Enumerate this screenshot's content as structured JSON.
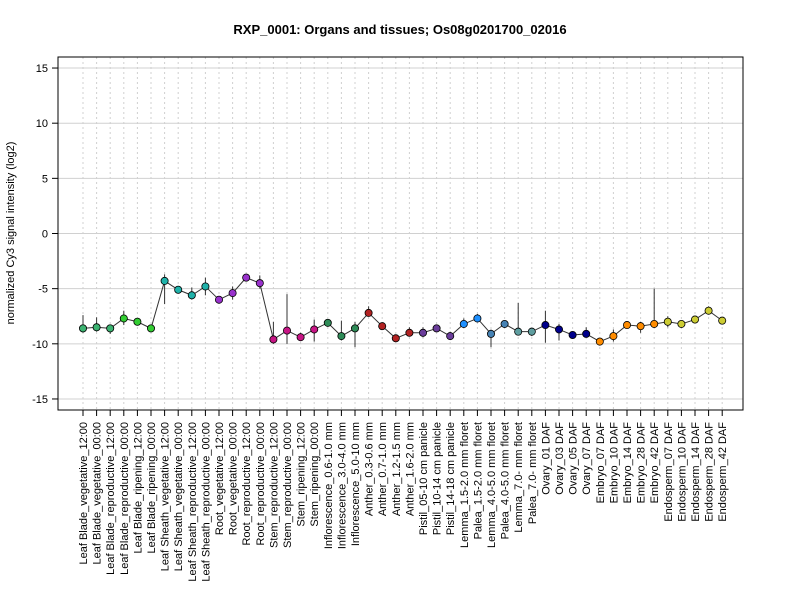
{
  "chart_data": {
    "type": "line",
    "title": "RXP_0001: Organs and tissues; Os08g0201700_02016",
    "xlabel": "",
    "ylabel": "normalized Cy3 signal intensity (log2)",
    "ylim": [
      -16,
      16
    ],
    "yticks": [
      -15,
      -10,
      -5,
      0,
      5,
      10,
      15
    ],
    "grid": true,
    "categories": [
      "Leaf Blade_vegetative_12:00",
      "Leaf Blade_vegetative_00:00",
      "Leaf Blade_reproductive_12:00",
      "Leaf Blade_reproductive_00:00",
      "Leaf Blade_ripening_12:00",
      "Leaf Blade_ripening_00:00",
      "Leaf Sheath_vegetative_12:00",
      "Leaf Sheath_vegetative_00:00",
      "Leaf Sheath_reproductive_12:00",
      "Leaf Sheath_reproductive_00:00",
      "Root_vegetative_12:00",
      "Root_vegetative_00:00",
      "Root_reproductive_12:00",
      "Root_reproductive_00:00",
      "Stem_reproductive_12:00",
      "Stem_reproductive_00:00",
      "Stem_ripening_12:00",
      "Stem_ripening_00:00",
      "Inflorescence_0.6-1.0 mm",
      "Inflorescence_3.0-4.0 mm",
      "Inflorescence_5.0-10 mm",
      "Anther_0.3-0.6 mm",
      "Anther_0.7-1.0 mm",
      "Anther_1.2-1.5 mm",
      "Anther_1.6-2.0 mm",
      "Pistil_05-10 cm panicle",
      "Pistil_10-14 cm panicle",
      "Pistil_14-18 cm panicle",
      "Lemma_1.5-2.0 mm floret",
      "Palea_1.5-2.0 mm floret",
      "Lemma_4.0-5.0 mm floret",
      "Palea_4.0-5.0 mm floret",
      "Lemma_7.0- mm floret",
      "Palea_7.0- mm floret",
      "Ovary_01 DAF",
      "Ovary_03 DAF",
      "Ovary_05 DAF",
      "Ovary_07 DAF",
      "Embryo_07 DAF",
      "Embryo_10 DAF",
      "Embryo_14 DAF",
      "Embryo_28 DAF",
      "Embryo_42 DAF",
      "Endosperm_07 DAF",
      "Endosperm_10 DAF",
      "Endosperm_14 DAF",
      "Endosperm_28 DAF",
      "Endosperm_42 DAF"
    ],
    "values": [
      -8.6,
      -8.5,
      -8.6,
      -7.7,
      -8.0,
      -8.6,
      -4.3,
      -5.1,
      -5.6,
      -4.8,
      -6.0,
      -5.4,
      -4.0,
      -4.5,
      -9.6,
      -8.8,
      -9.4,
      -8.7,
      -8.1,
      -9.3,
      -8.6,
      -7.2,
      -8.4,
      -9.5,
      -9.0,
      -9.0,
      -8.6,
      -9.3,
      -8.2,
      -7.7,
      -9.1,
      -8.2,
      -8.9,
      -8.9,
      -8.3,
      -8.7,
      -9.2,
      -9.1,
      -9.8,
      -9.3,
      -8.3,
      -8.4,
      -8.2,
      -8.0,
      -8.2,
      -7.8,
      -7.0,
      -7.9
    ],
    "err_low": [
      -9.0,
      -8.9,
      -9.1,
      -8.3,
      -8.2,
      -8.9,
      -6.4,
      -5.2,
      -6.0,
      -5.6,
      -6.2,
      -6.0,
      -4.1,
      -5.0,
      -10.0,
      -10.0,
      -9.6,
      -9.8,
      -8.3,
      -9.7,
      -10.3,
      -7.5,
      -8.6,
      -9.8,
      -9.2,
      -9.4,
      -8.8,
      -9.6,
      -8.5,
      -8.0,
      -10.3,
      -8.4,
      -9.2,
      -9.3,
      -9.9,
      -9.7,
      -9.5,
      -9.3,
      -10.0,
      -9.8,
      -8.5,
      -9.0,
      -8.5,
      -8.5,
      -8.4,
      -8.0,
      -7.3,
      -8.0
    ],
    "err_high": [
      -7.4,
      -7.6,
      -8.3,
      -7.0,
      -7.7,
      -8.3,
      -3.7,
      -4.8,
      -4.9,
      -4.0,
      -5.8,
      -4.8,
      -3.8,
      -3.8,
      -8.0,
      -5.5,
      -9.0,
      -7.8,
      -7.8,
      -7.9,
      -8.0,
      -6.6,
      -8.2,
      -9.2,
      -8.5,
      -8.5,
      -8.3,
      -8.9,
      -7.7,
      -7.3,
      -8.7,
      -7.9,
      -6.3,
      -8.6,
      -7.0,
      -8.2,
      -8.9,
      -8.5,
      -9.5,
      -8.7,
      -8.1,
      -8.0,
      -5.0,
      -7.5,
      -7.9,
      -7.5,
      -6.6,
      -7.7
    ],
    "colors": [
      "#3cb371",
      "#3cb371",
      "#3cb371",
      "#32cd32",
      "#32cd32",
      "#32cd32",
      "#20b2aa",
      "#20b2aa",
      "#20b2aa",
      "#20b2aa",
      "#9932cc",
      "#9932cc",
      "#9932cc",
      "#9932cc",
      "#c71585",
      "#c71585",
      "#c71585",
      "#c71585",
      "#2e8b57",
      "#2e8b57",
      "#2e8b57",
      "#b22222",
      "#b22222",
      "#b22222",
      "#b22222",
      "#6a3d9a",
      "#6a3d9a",
      "#6a3d9a",
      "#1e90ff",
      "#1e90ff",
      "#4682b4",
      "#4682b4",
      "#5f9ea0",
      "#5f9ea0",
      "#00008b",
      "#00008b",
      "#00008b",
      "#00008b",
      "#ff8c00",
      "#ff8c00",
      "#ff8c00",
      "#ff8c00",
      "#ff8c00",
      "#cccc33",
      "#cccc33",
      "#cccc33",
      "#cccc33",
      "#cccc33"
    ]
  }
}
